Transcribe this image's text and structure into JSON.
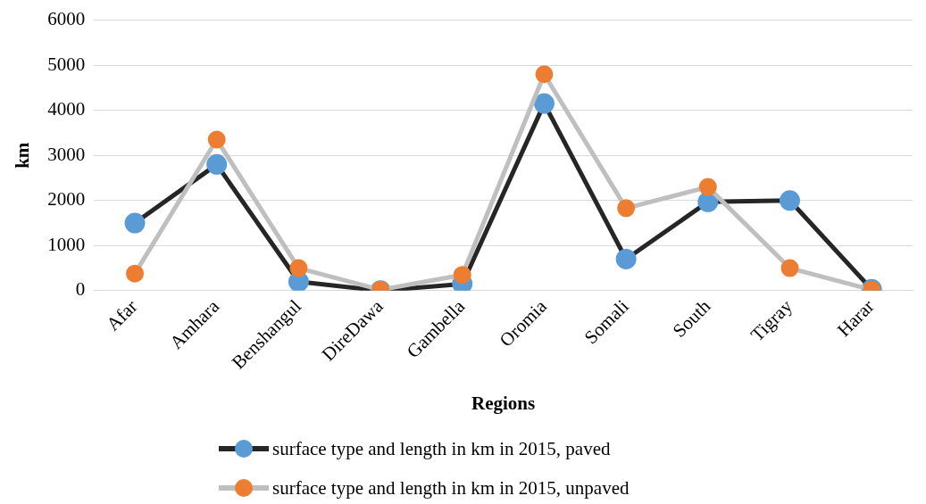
{
  "chart_data": {
    "type": "line",
    "xlabel": "Regions",
    "ylabel": "km",
    "categories": [
      "Afar",
      "Amhara",
      "Benshangul",
      "DireDawa",
      "Gambella",
      "Oromia",
      "Somali",
      "South",
      "Tigray",
      "Harar"
    ],
    "series": [
      {
        "name": "surface type and length in km in 2015, paved",
        "color": "#262626",
        "colors": [
          "#5b9bd5",
          "#5b9bd5",
          "#5b9bd5",
          "#5b9bd5",
          "#5b9bd5",
          "#5b9bd5",
          "#5b9bd5",
          "#5b9bd5",
          "#5b9bd5",
          "#5b9bd5"
        ],
        "values": [
          1500,
          2800,
          200,
          0,
          150,
          4150,
          700,
          1970,
          2000,
          30
        ]
      },
      {
        "name": "surface type and length in km in 2015, unpaved",
        "color": "#bfbfbf",
        "colors": [
          "#ed7d31",
          "#ed7d31",
          "#ed7d31",
          "#ed7d31",
          "#ed7d31",
          "#ed7d31",
          "#ed7d31",
          "#ed7d31",
          "#ed7d31",
          "#ed7d31"
        ],
        "values": [
          380,
          3350,
          500,
          20,
          350,
          4800,
          1830,
          2300,
          500,
          20
        ]
      }
    ],
    "ylim": [
      0,
      6000
    ],
    "yticks": [
      0,
      1000,
      2000,
      3000,
      4000,
      5000,
      6000
    ],
    "grid": "y",
    "legend": "bottom",
    "marker": "circle",
    "line_style": "solid"
  }
}
